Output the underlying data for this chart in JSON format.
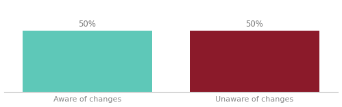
{
  "categories": [
    "Aware of changes",
    "Unaware of changes"
  ],
  "values": [
    50,
    50
  ],
  "bar_colors": [
    "#5ec8b8",
    "#8b1a2a"
  ],
  "value_labels": [
    "50%",
    "50%"
  ],
  "background_color": "#ffffff",
  "label_color": "#888888",
  "value_color": "#777777",
  "ylim": [
    0,
    72
  ],
  "x_positions": [
    1,
    3
  ],
  "bar_width": 1.55,
  "xlim": [
    0,
    4
  ],
  "label_fontsize": 8,
  "value_fontsize": 8.5
}
